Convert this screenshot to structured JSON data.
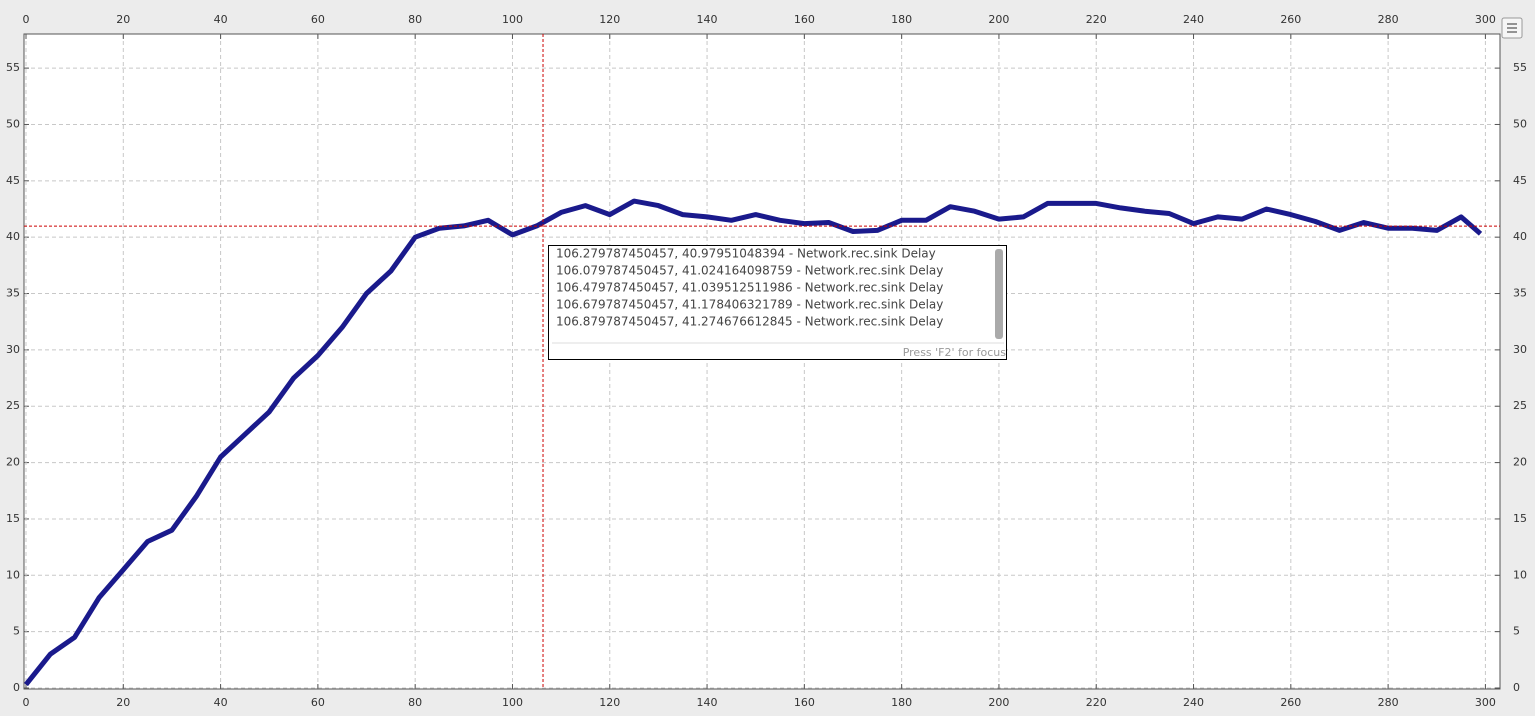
{
  "chart_data": {
    "type": "line",
    "x": [
      0,
      5,
      10,
      15,
      20,
      25,
      30,
      35,
      40,
      45,
      50,
      55,
      60,
      65,
      70,
      75,
      80,
      85,
      90,
      95,
      100,
      105,
      110,
      115,
      120,
      125,
      130,
      135,
      140,
      145,
      150,
      155,
      160,
      165,
      170,
      175,
      180,
      185,
      190,
      195,
      200,
      205,
      210,
      215,
      220,
      225,
      230,
      235,
      240,
      245,
      250,
      255,
      260,
      265,
      270,
      275,
      280,
      285,
      290,
      295,
      299
    ],
    "series": [
      {
        "color": "#1a1a8c",
        "values": [
          0.3,
          3,
          4.5,
          8,
          10.5,
          13,
          14,
          17,
          20.5,
          22.5,
          24.5,
          27.5,
          29.5,
          32,
          35,
          37,
          40,
          40.8,
          41,
          41.5,
          40.2,
          41,
          42.2,
          42.8,
          42,
          43.2,
          42.8,
          42,
          41.8,
          41.5,
          42,
          41.5,
          41.2,
          41.3,
          40.5,
          40.6,
          41.5,
          41.5,
          42.7,
          42.3,
          41.6,
          41.8,
          43,
          43,
          43,
          42.6,
          42.3,
          42.1,
          41.2,
          41.8,
          41.6,
          42.5,
          42,
          41.4,
          40.6,
          41.3,
          40.8,
          40.8,
          40.6,
          41.8,
          40.3
        ]
      }
    ],
    "xlim": [
      0,
      303
    ],
    "ylim": [
      0,
      58
    ],
    "xticks": [
      0,
      20,
      40,
      60,
      80,
      100,
      120,
      140,
      160,
      180,
      200,
      220,
      240,
      260,
      280,
      300
    ],
    "yticks": [
      0,
      5,
      10,
      15,
      20,
      25,
      30,
      35,
      40,
      45,
      50,
      55
    ],
    "grid": true,
    "crosshair": {
      "x": 106.279787450457,
      "y": 40.97951048394,
      "color": "#cc0000"
    },
    "tooltip": {
      "lines": [
        "106.279787450457, 40.97951048394 - Network.rec.sink Delay",
        "106.079787450457, 41.024164098759 - Network.rec.sink Delay",
        "106.479787450457, 41.039512511986 - Network.rec.sink Delay",
        "106.679787450457, 41.178406321789 - Network.rec.sink Delay",
        "106.879787450457, 41.274676612845 - Network.rec.sink Delay"
      ],
      "hint": "Press 'F2' for focus"
    }
  }
}
